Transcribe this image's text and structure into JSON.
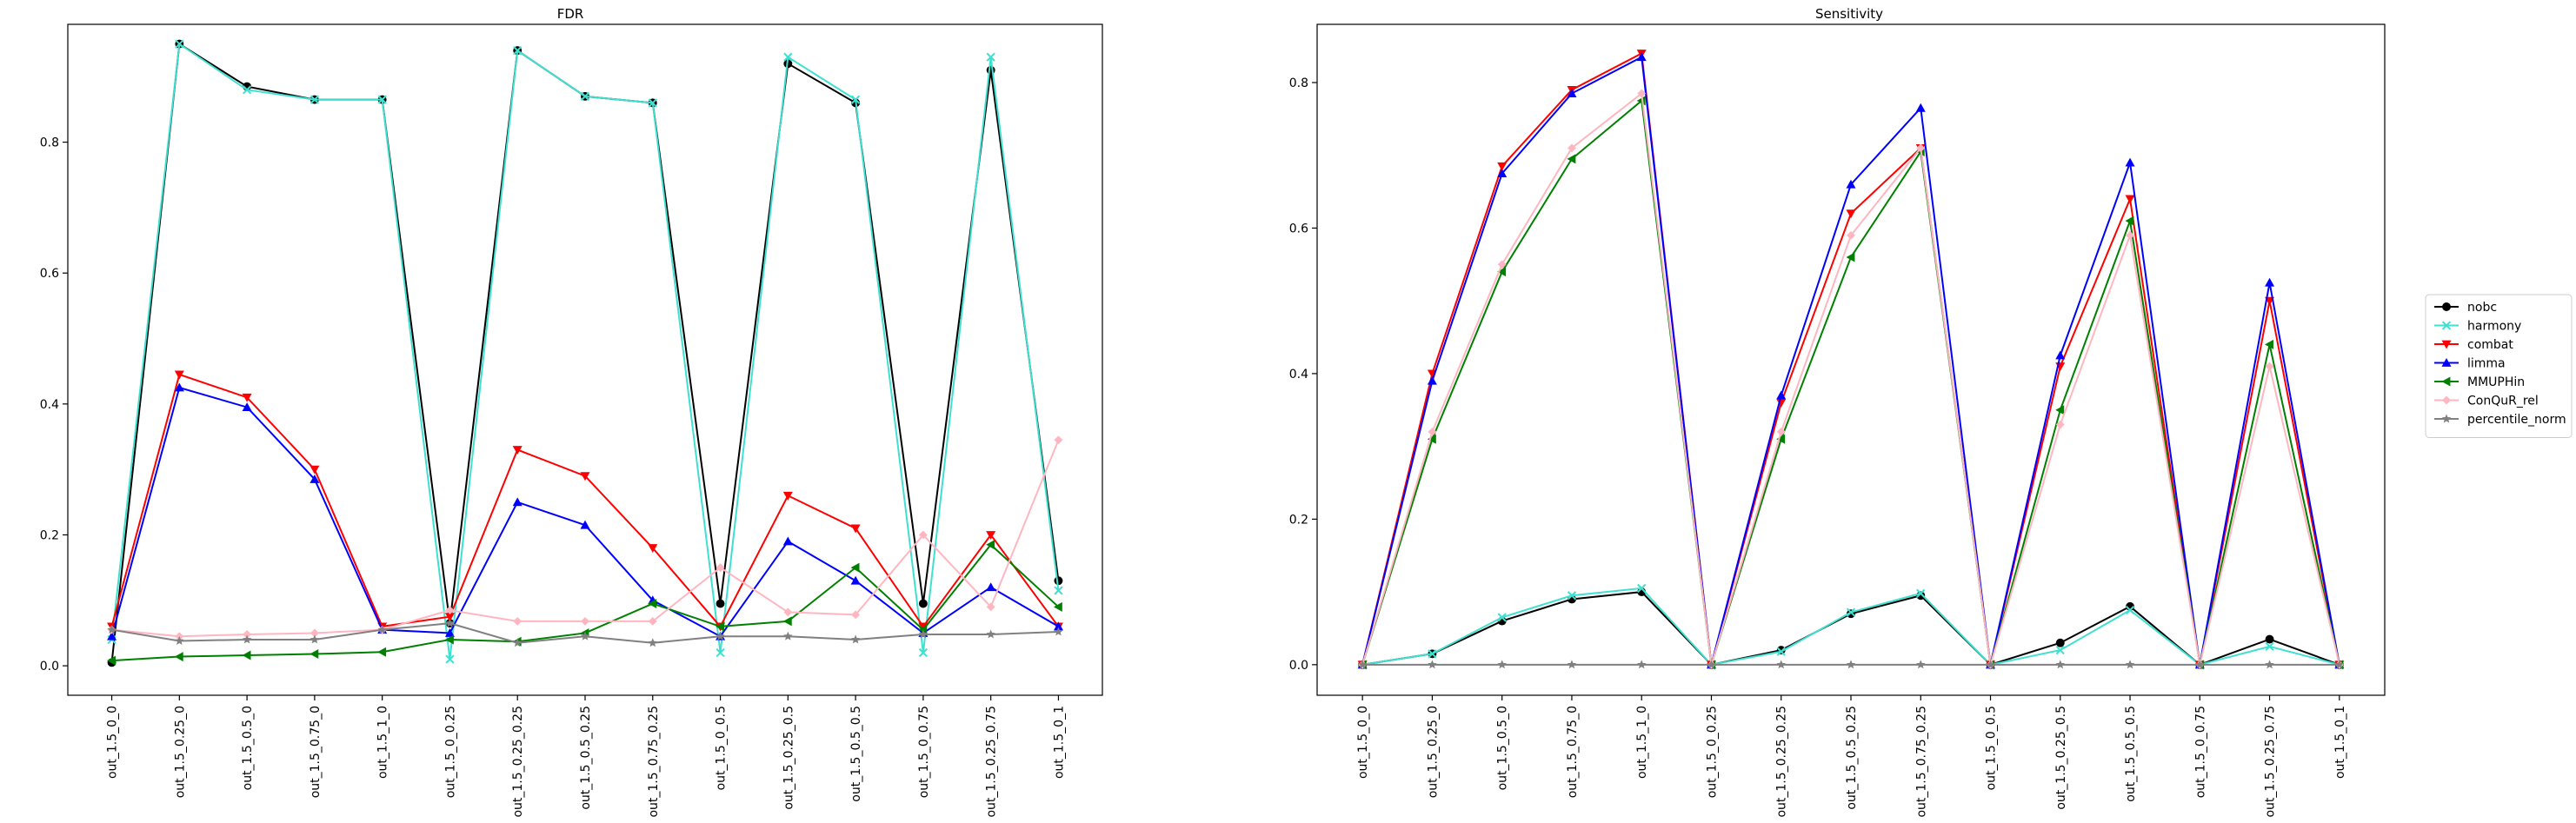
{
  "chart_data": [
    {
      "type": "line",
      "title": "FDR",
      "xlabel": "",
      "ylabel": "",
      "ylim": [
        -0.045,
        0.98
      ],
      "yticks": [
        0.0,
        0.2,
        0.4,
        0.6,
        0.8
      ],
      "ytick_labels": [
        "0.0",
        "0.2",
        "0.4",
        "0.6",
        "0.8"
      ],
      "grid": false,
      "categories": [
        "out_1.5_0_0",
        "out_1.5_0.25_0",
        "out_1.5_0.5_0",
        "out_1.5_0.75_0",
        "out_1.5_1_0",
        "out_1.5_0_0.25",
        "out_1.5_0.25_0.25",
        "out_1.5_0.5_0.25",
        "out_1.5_0.75_0.25",
        "out_1.5_0_0.5",
        "out_1.5_0.25_0.5",
        "out_1.5_0.5_0.5",
        "out_1.5_0_0.75",
        "out_1.5_0.25_0.75",
        "out_1.5_0_1"
      ],
      "series": [
        {
          "name": "nobc",
          "color": "#000000",
          "marker": "circle",
          "values": [
            0.005,
            0.95,
            0.885,
            0.865,
            0.865,
            0.065,
            0.94,
            0.87,
            0.86,
            0.095,
            0.92,
            0.86,
            0.095,
            0.91,
            0.13
          ]
        },
        {
          "name": "harmony",
          "color": "#40e0d0",
          "marker": "x",
          "values": [
            0.04,
            0.95,
            0.88,
            0.865,
            0.865,
            0.01,
            0.94,
            0.87,
            0.86,
            0.02,
            0.93,
            0.865,
            0.02,
            0.93,
            0.115
          ]
        },
        {
          "name": "combat",
          "color": "#ff0000",
          "marker": "triangle-down",
          "values": [
            0.06,
            0.445,
            0.41,
            0.3,
            0.06,
            0.075,
            0.33,
            0.29,
            0.18,
            0.06,
            0.26,
            0.21,
            0.06,
            0.2,
            0.06
          ]
        },
        {
          "name": "limma",
          "color": "#0000ff",
          "marker": "triangle-up",
          "values": [
            0.045,
            0.425,
            0.395,
            0.285,
            0.055,
            0.05,
            0.25,
            0.215,
            0.1,
            0.045,
            0.19,
            0.13,
            0.05,
            0.12,
            0.06
          ]
        },
        {
          "name": "MMUPHin",
          "color": "#008000",
          "marker": "triangle-left",
          "values": [
            0.008,
            0.014,
            0.016,
            0.018,
            0.021,
            0.04,
            0.037,
            0.05,
            0.095,
            0.06,
            0.068,
            0.15,
            0.055,
            0.185,
            0.09
          ]
        },
        {
          "name": "ConQuR_rel",
          "color": "#ffb6c1",
          "marker": "diamond",
          "values": [
            0.055,
            0.045,
            0.048,
            0.05,
            0.055,
            0.085,
            0.068,
            0.068,
            0.068,
            0.15,
            0.082,
            0.078,
            0.2,
            0.09,
            0.345
          ]
        },
        {
          "name": "percentile_norm",
          "color": "#808080",
          "marker": "star",
          "values": [
            0.055,
            0.038,
            0.04,
            0.04,
            0.055,
            0.065,
            0.035,
            0.045,
            0.035,
            0.045,
            0.045,
            0.04,
            0.048,
            0.048,
            0.052
          ]
        }
      ]
    },
    {
      "type": "line",
      "title": "Sensitivity",
      "xlabel": "",
      "ylabel": "",
      "ylim": [
        -0.042,
        0.88
      ],
      "yticks": [
        0.0,
        0.2,
        0.4,
        0.6,
        0.8
      ],
      "ytick_labels": [
        "0.0",
        "0.2",
        "0.4",
        "0.6",
        "0.8"
      ],
      "grid": false,
      "categories": [
        "out_1.5_0_0",
        "out_1.5_0.25_0",
        "out_1.5_0.5_0",
        "out_1.5_0.75_0",
        "out_1.5_1_0",
        "out_1.5_0_0.25",
        "out_1.5_0.25_0.25",
        "out_1.5_0.5_0.25",
        "out_1.5_0.75_0.25",
        "out_1.5_0_0.5",
        "out_1.5_0.25_0.5",
        "out_1.5_0.5_0.5",
        "out_1.5_0_0.75",
        "out_1.5_0.25_0.75",
        "out_1.5_0_1"
      ],
      "series": [
        {
          "name": "nobc",
          "color": "#000000",
          "marker": "circle",
          "values": [
            0.0,
            0.015,
            0.06,
            0.09,
            0.1,
            0.0,
            0.02,
            0.07,
            0.095,
            0.0,
            0.03,
            0.08,
            0.0,
            0.035,
            0.0
          ]
        },
        {
          "name": "harmony",
          "color": "#40e0d0",
          "marker": "x",
          "values": [
            0.0,
            0.015,
            0.065,
            0.095,
            0.105,
            0.0,
            0.018,
            0.072,
            0.098,
            0.0,
            0.02,
            0.075,
            0.0,
            0.025,
            0.0
          ]
        },
        {
          "name": "combat",
          "color": "#ff0000",
          "marker": "triangle-down",
          "values": [
            0.0,
            0.4,
            0.685,
            0.79,
            0.84,
            0.0,
            0.36,
            0.62,
            0.71,
            0.0,
            0.41,
            0.64,
            0.0,
            0.5,
            0.0
          ]
        },
        {
          "name": "limma",
          "color": "#0000ff",
          "marker": "triangle-up",
          "values": [
            0.0,
            0.39,
            0.675,
            0.785,
            0.835,
            0.0,
            0.37,
            0.66,
            0.765,
            0.0,
            0.425,
            0.69,
            0.0,
            0.525,
            0.0
          ]
        },
        {
          "name": "MMUPHin",
          "color": "#008000",
          "marker": "triangle-left",
          "values": [
            0.0,
            0.31,
            0.54,
            0.695,
            0.775,
            0.0,
            0.31,
            0.56,
            0.705,
            0.0,
            0.35,
            0.61,
            0.0,
            0.44,
            0.0
          ]
        },
        {
          "name": "ConQuR_rel",
          "color": "#ffb6c1",
          "marker": "diamond",
          "values": [
            0.0,
            0.32,
            0.55,
            0.71,
            0.785,
            0.0,
            0.32,
            0.59,
            0.71,
            0.0,
            0.33,
            0.59,
            0.0,
            0.41,
            0.0
          ]
        },
        {
          "name": "percentile_norm",
          "color": "#808080",
          "marker": "star",
          "values": [
            0.0,
            0.0,
            0.0,
            0.0,
            0.0,
            0.0,
            0.0,
            0.0,
            0.0,
            0.0,
            0.0,
            0.0,
            0.0,
            0.0,
            0.0
          ]
        }
      ]
    }
  ],
  "legend": {
    "placement": "center-right",
    "entries": [
      "nobc",
      "harmony",
      "combat",
      "limma",
      "MMUPHin",
      "ConQuR_rel",
      "percentile_norm"
    ]
  }
}
